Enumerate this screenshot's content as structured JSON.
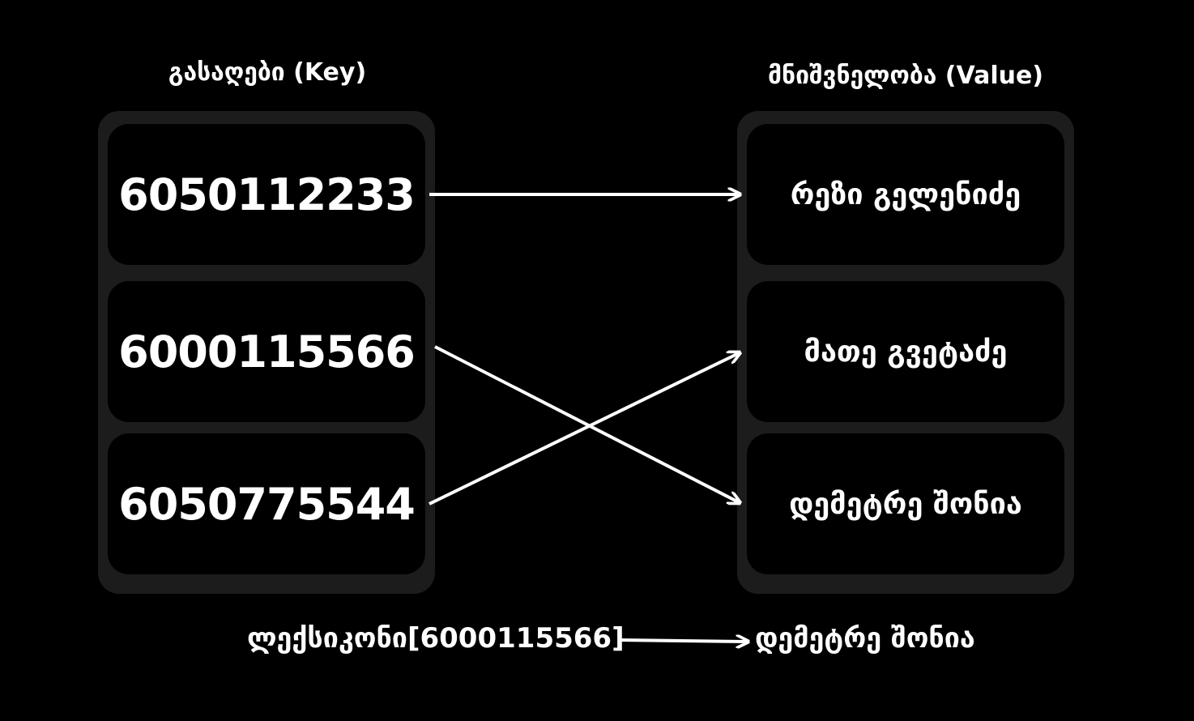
{
  "keys_column": {
    "title": "გასაღები (Key)",
    "items": [
      "6050112233",
      "6000115566",
      "6050775544"
    ]
  },
  "values_column": {
    "title": "მნიშვნელობა (Value)",
    "items": [
      "რეზი გელენიძე",
      "მათე გვეტაძე",
      "დემეტრე შონია"
    ]
  },
  "mappings": [
    {
      "from": 0,
      "to": 0
    },
    {
      "from": 1,
      "to": 2
    },
    {
      "from": 2,
      "to": 1
    }
  ],
  "example": {
    "expression": "ლექსიკონი[6000115566]",
    "result": "დემეტრე შონია"
  },
  "colors": {
    "background": "#000000",
    "panel": "#1c1c1c",
    "cell": "#000000",
    "text": "#ffffff",
    "arrow": "#ffffff"
  }
}
